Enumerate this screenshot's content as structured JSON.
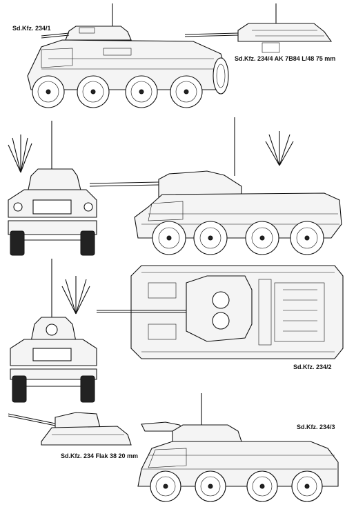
{
  "labels": {
    "top_left": "Sd.Kfz. 234/1",
    "top_right": "Sd.Kfz. 234/4 AK 7B84 L/48 75 mm",
    "plan_view": "Sd.Kfz. 234/2",
    "bottom_left": "Sd.Kfz. 234 Flak 38 20 mm",
    "bottom_right": "Sd.Kfz. 234/3"
  }
}
